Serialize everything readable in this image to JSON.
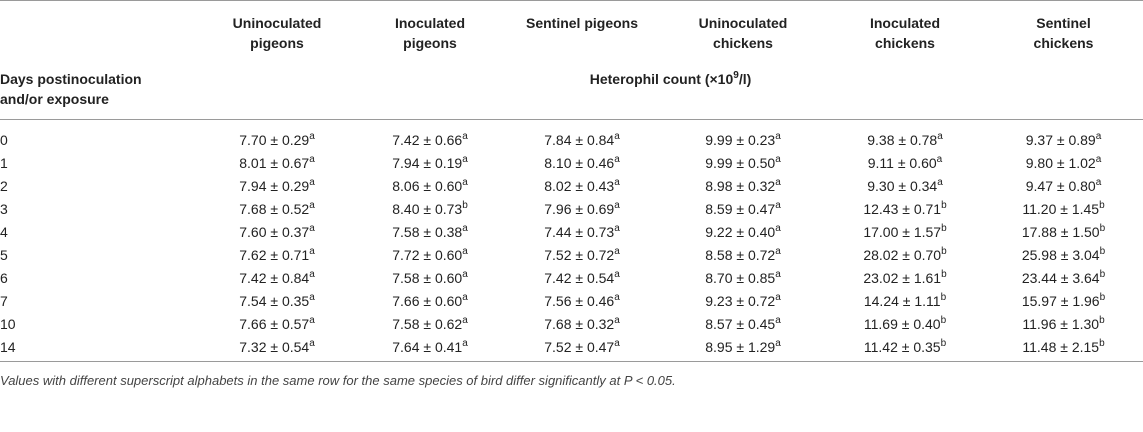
{
  "columns": [
    "Uninoculated pigeons",
    "Inoculated pigeons",
    "Sentinel pigeons",
    "Uninoculated chickens",
    "Inoculated chickens",
    "Sentinel chickens"
  ],
  "columns_lines": [
    [
      "Uninoculated",
      "pigeons"
    ],
    [
      "Inoculated",
      "pigeons"
    ],
    [
      "Sentinel pigeons",
      ""
    ],
    [
      "Uninoculated",
      "chickens"
    ],
    [
      "Inoculated",
      "chickens"
    ],
    [
      "Sentinel",
      "chickens"
    ]
  ],
  "row_header": [
    "Days postinoculation",
    "and/or exposure"
  ],
  "measure": {
    "label": "Heterophil count (×10",
    "exp": "9",
    "tail": "/l)"
  },
  "rows": [
    {
      "day": "0",
      "cells": [
        [
          "7.70 ± 0.29",
          "a"
        ],
        [
          "7.42 ± 0.66",
          "a"
        ],
        [
          "7.84 ± 0.84",
          "a"
        ],
        [
          "9.99 ± 0.23",
          "a"
        ],
        [
          "9.38 ± 0.78",
          "a"
        ],
        [
          "9.37 ± 0.89",
          "a"
        ]
      ]
    },
    {
      "day": "1",
      "cells": [
        [
          "8.01 ± 0.67",
          "a"
        ],
        [
          "7.94 ± 0.19",
          "a"
        ],
        [
          "8.10 ± 0.46",
          "a"
        ],
        [
          "9.99 ± 0.50",
          "a"
        ],
        [
          "9.11 ± 0.60",
          "a"
        ],
        [
          "9.80 ± 1.02",
          "a"
        ]
      ]
    },
    {
      "day": "2",
      "cells": [
        [
          "7.94 ± 0.29",
          "a"
        ],
        [
          "8.06 ± 0.60",
          "a"
        ],
        [
          "8.02 ± 0.43",
          "a"
        ],
        [
          "8.98 ± 0.32",
          "a"
        ],
        [
          "9.30 ± 0.34",
          "a"
        ],
        [
          "9.47 ± 0.80",
          "a"
        ]
      ]
    },
    {
      "day": "3",
      "cells": [
        [
          "7.68 ± 0.52",
          "a"
        ],
        [
          "8.40 ± 0.73",
          "b"
        ],
        [
          "7.96 ± 0.69",
          "a"
        ],
        [
          "8.59 ± 0.47",
          "a"
        ],
        [
          "12.43 ± 0.71",
          "b"
        ],
        [
          "11.20 ± 1.45",
          "b"
        ]
      ]
    },
    {
      "day": "4",
      "cells": [
        [
          "7.60 ± 0.37",
          "a"
        ],
        [
          "7.58 ± 0.38",
          "a"
        ],
        [
          "7.44 ± 0.73",
          "a"
        ],
        [
          "9.22 ± 0.40",
          "a"
        ],
        [
          "17.00 ± 1.57",
          "b"
        ],
        [
          "17.88 ± 1.50",
          "b"
        ]
      ]
    },
    {
      "day": "5",
      "cells": [
        [
          "7.62 ± 0.71",
          "a"
        ],
        [
          "7.72 ± 0.60",
          "a"
        ],
        [
          "7.52 ± 0.72",
          "a"
        ],
        [
          "8.58 ± 0.72",
          "a"
        ],
        [
          "28.02 ± 0.70",
          "b"
        ],
        [
          "25.98 ± 3.04",
          "b"
        ]
      ]
    },
    {
      "day": "6",
      "cells": [
        [
          "7.42 ± 0.84",
          "a"
        ],
        [
          "7.58 ± 0.60",
          "a"
        ],
        [
          "7.42 ± 0.54",
          "a"
        ],
        [
          "8.70 ± 0.85",
          "a"
        ],
        [
          "23.02 ± 1.61",
          "b"
        ],
        [
          "23.44 ± 3.64",
          "b"
        ]
      ]
    },
    {
      "day": "7",
      "cells": [
        [
          "7.54 ± 0.35",
          "a"
        ],
        [
          "7.66 ± 0.60",
          "a"
        ],
        [
          "7.56 ± 0.46",
          "a"
        ],
        [
          "9.23 ± 0.72",
          "a"
        ],
        [
          "14.24 ± 1.11",
          "b"
        ],
        [
          "15.97 ± 1.96",
          "b"
        ]
      ]
    },
    {
      "day": "10",
      "cells": [
        [
          "7.66 ± 0.57",
          "a"
        ],
        [
          "7.58 ± 0.62",
          "a"
        ],
        [
          "7.68 ± 0.32",
          "a"
        ],
        [
          "8.57 ± 0.45",
          "a"
        ],
        [
          "11.69 ± 0.40",
          "b"
        ],
        [
          "11.96 ± 1.30",
          "b"
        ]
      ]
    },
    {
      "day": "14",
      "cells": [
        [
          "7.32 ± 0.54",
          "a"
        ],
        [
          "7.64 ± 0.41",
          "a"
        ],
        [
          "7.52 ± 0.47",
          "a"
        ],
        [
          "8.95 ± 1.29",
          "a"
        ],
        [
          "11.42 ± 0.35",
          "b"
        ],
        [
          "11.48 ± 2.15",
          "b"
        ]
      ]
    }
  ],
  "footnote": "Values with different superscript alphabets in the same row for the same species of bird differ significantly at P < 0.05."
}
